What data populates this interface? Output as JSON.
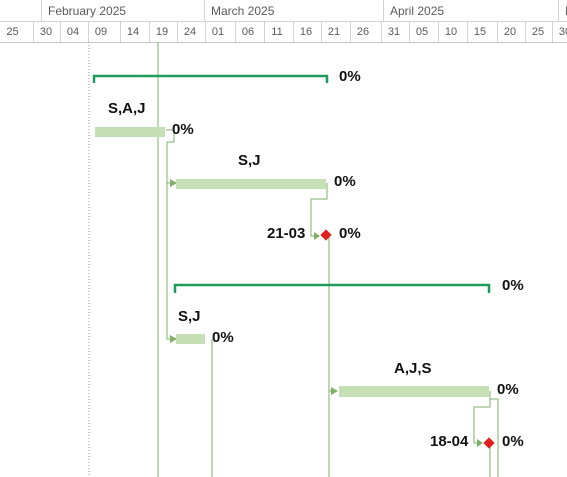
{
  "timescale": {
    "months": [
      {
        "label": "February 2025"
      },
      {
        "label": "March 2025"
      },
      {
        "label": "April 2025"
      },
      {
        "label": "M"
      }
    ],
    "days": [
      "25",
      "30",
      "04",
      "09",
      "14",
      "19",
      "24",
      "01",
      "06",
      "11",
      "16",
      "21",
      "26",
      "31",
      "05",
      "10",
      "15",
      "20",
      "25",
      "30"
    ]
  },
  "tasks": [
    {
      "type": "summary",
      "complete": "0%"
    },
    {
      "type": "task",
      "resources": "S,A,J",
      "complete": "0%"
    },
    {
      "type": "task",
      "resources": "S,J",
      "complete": "0%"
    },
    {
      "type": "milestone",
      "date": "21-03",
      "complete": "0%"
    },
    {
      "type": "summary",
      "complete": "0%"
    },
    {
      "type": "task",
      "resources": "S,J",
      "complete": "0%"
    },
    {
      "type": "task",
      "resources": "A,J,S",
      "complete": "0%"
    },
    {
      "type": "milestone",
      "date": "18-04",
      "complete": "0%"
    }
  ],
  "colors": {
    "summary": "#1f9a5a",
    "task_bar": "#c5e0b4",
    "link": "#7fb069",
    "milestone": "#e02020",
    "today_line": "#7fb069",
    "status_date": "#888888"
  }
}
